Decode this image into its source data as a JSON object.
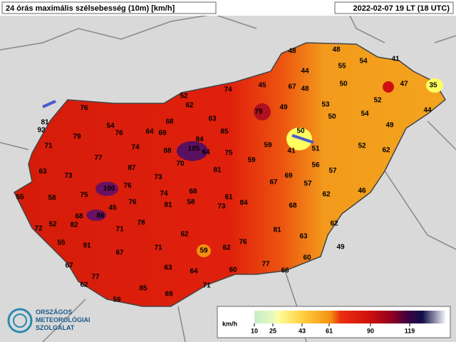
{
  "header": {
    "title": "24 órás maximális szélsebesség (10m) [km/h]",
    "timestamp": "2022-02-07 19 LT (18 UTC)"
  },
  "stations": [
    "48",
    "48",
    "44",
    "55",
    "54",
    "41",
    "67",
    "48",
    "50",
    "47",
    "35",
    "45",
    "74",
    "52",
    "62",
    "79",
    "49",
    "53",
    "52",
    "44",
    "76",
    "54",
    "68",
    "63",
    "50",
    "54",
    "81",
    "92",
    "79",
    "76",
    "64",
    "69",
    "85",
    "50",
    "49",
    "71",
    "84",
    "74",
    "105",
    "64",
    "88",
    "75",
    "59",
    "41",
    "51",
    "52",
    "62",
    "77",
    "70",
    "87",
    "59",
    "56",
    "57",
    "63",
    "73",
    "81",
    "73",
    "69",
    "100",
    "76",
    "67",
    "57",
    "46",
    "55",
    "58",
    "75",
    "74",
    "68",
    "61",
    "62",
    "45",
    "76",
    "81",
    "58",
    "73",
    "84",
    "68",
    "68",
    "86",
    "82",
    "52",
    "78",
    "62",
    "72",
    "71",
    "81",
    "63",
    "55",
    "62",
    "91",
    "76",
    "49",
    "71",
    "59",
    "62",
    "67",
    "60",
    "67",
    "63",
    "77",
    "60",
    "64",
    "66",
    "77",
    "62",
    "71",
    "85",
    "59",
    "69"
  ],
  "legend": {
    "unit": "km/h",
    "ticks": [
      "10",
      "25",
      "43",
      "61",
      "90",
      "119"
    ]
  },
  "logo": {
    "lines": [
      "ORSZÁGOS",
      "METEOROLÓGIAI",
      "SZOLGÁLAT"
    ]
  }
}
